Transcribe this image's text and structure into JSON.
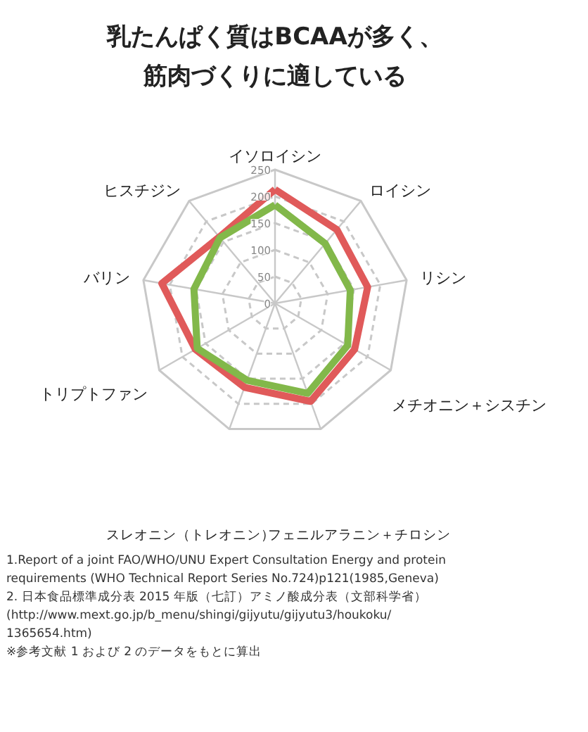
{
  "chart_data": {
    "type": "radar",
    "title": "乳たんぱく質はBCAAが多く、",
    "subtitle": "筋肉づくりに適している",
    "categories": [
      "イソロイシン",
      "ロイシン",
      "リシン",
      "メチオニン＋シスチン",
      "フェニルアラニン＋チロシン",
      "スレオニン（トレオニン）",
      "トリプトファン",
      "バリン",
      "ヒスチジン"
    ],
    "series": [
      {
        "color": "#e05a5a",
        "values": [
          213,
          180,
          176,
          172,
          195,
          167,
          172,
          215,
          162
        ]
      },
      {
        "color": "#82b84a",
        "values": [
          184,
          146,
          143,
          157,
          179,
          153,
          168,
          154,
          160
        ]
      }
    ],
    "ylim": [
      0,
      250
    ],
    "yticks": [
      0,
      50,
      100,
      150,
      200,
      250
    ],
    "grid": true,
    "annotations": [
      "1.Report of a joint FAO/WHO/UNU Expert Consultation Energy and protein",
      "requirements (WHO Technical Report Series No.724)p121(1985,Geneva)",
      "2. 日本食品標準成分表 2015 年版（七訂）アミノ酸成分表（文部科学省）",
      "(http://www.mext.go.jp/b_menu/shingi/gijyutu/gijyutu3/houkoku/",
      "1365654.htm)",
      "※参考文献 1 および 2 のデータをもとに算出"
    ]
  }
}
